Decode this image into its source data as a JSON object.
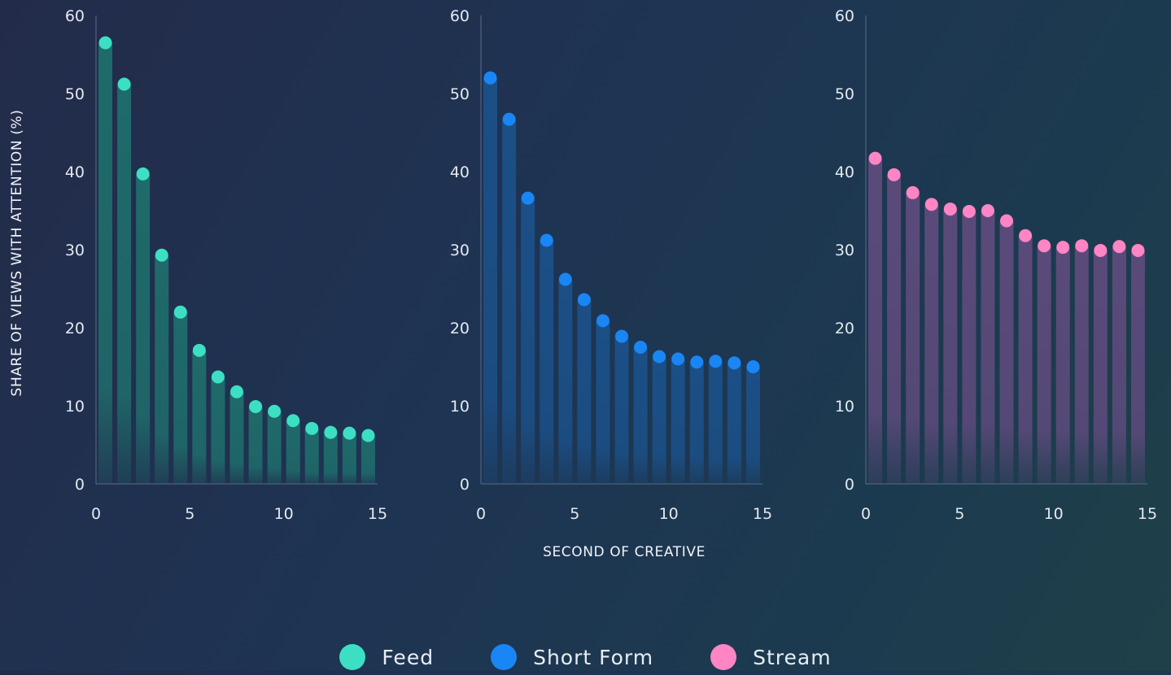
{
  "chart_data": {
    "type": "bar",
    "title": "",
    "ylabel": "SHARE OF VIEWS WITH ATTENTION (%)",
    "xlabel": "SECOND OF CREATIVE",
    "ylim": [
      0,
      60
    ],
    "xlim": [
      0,
      15
    ],
    "yticks": [
      0,
      10,
      20,
      30,
      40,
      50,
      60
    ],
    "xticks": [
      0,
      5,
      10,
      15
    ],
    "grid": false,
    "legend_position": "bottom-center",
    "x": [
      1,
      2,
      3,
      4,
      5,
      6,
      7,
      8,
      9,
      10,
      11,
      12,
      13,
      14,
      15
    ],
    "panels": [
      {
        "name": "Feed",
        "color": "#3ddfc4",
        "values": [
          56.5,
          51.2,
          39.7,
          29.3,
          22.0,
          17.1,
          13.7,
          11.8,
          9.9,
          9.3,
          8.1,
          7.1,
          6.6,
          6.5,
          6.2
        ]
      },
      {
        "name": "Short Form",
        "color": "#1a86f5",
        "values": [
          52.0,
          46.7,
          36.6,
          31.2,
          26.2,
          23.6,
          20.9,
          18.9,
          17.5,
          16.3,
          16.0,
          15.6,
          15.7,
          15.5,
          15.0
        ]
      },
      {
        "name": "Stream",
        "color": "#ff85c5",
        "values": [
          41.7,
          39.6,
          37.3,
          35.8,
          35.2,
          34.9,
          35.0,
          33.7,
          31.8,
          30.5,
          30.3,
          30.5,
          29.9,
          30.4,
          29.9
        ]
      }
    ]
  },
  "legend": {
    "feed": "Feed",
    "short_form": "Short Form",
    "stream": "Stream"
  }
}
